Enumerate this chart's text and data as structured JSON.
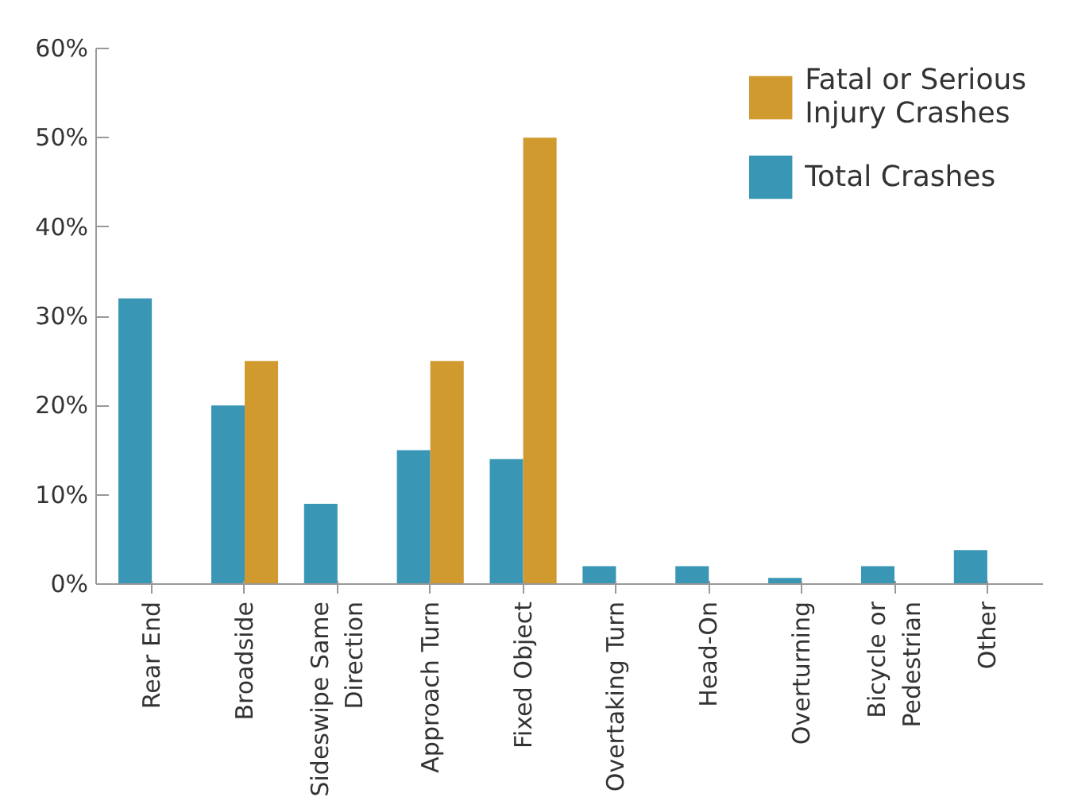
{
  "chart_data": {
    "type": "bar",
    "categories": [
      "Rear End",
      "Broadside",
      "Sideswipe Same Direction",
      "Approach Turn",
      "Fixed Object",
      "Overtaking Turn",
      "Head-On",
      "Overturning",
      "Bicycle or Pedestrian",
      "Other"
    ],
    "series": [
      {
        "name": "Total Crashes",
        "color": "#3a96b5",
        "values": [
          32,
          20,
          9,
          15,
          14,
          2,
          2,
          0.7,
          2,
          3.8
        ]
      },
      {
        "name": "Fatal or Serious Injury Crashes",
        "color": "#d09a2e",
        "values": [
          0,
          25,
          0,
          25,
          50,
          0,
          0,
          0,
          0,
          0
        ]
      }
    ],
    "ylim": [
      0,
      60
    ],
    "yticks": [
      {
        "value": 0,
        "label": "0%"
      },
      {
        "value": 10,
        "label": "10%"
      },
      {
        "value": 20,
        "label": "20%"
      },
      {
        "value": 30,
        "label": "30%"
      },
      {
        "value": 40,
        "label": "40%"
      },
      {
        "value": 50,
        "label": "50%"
      },
      {
        "value": 60,
        "label": "60%"
      }
    ],
    "grid": false,
    "legend": "top right"
  }
}
